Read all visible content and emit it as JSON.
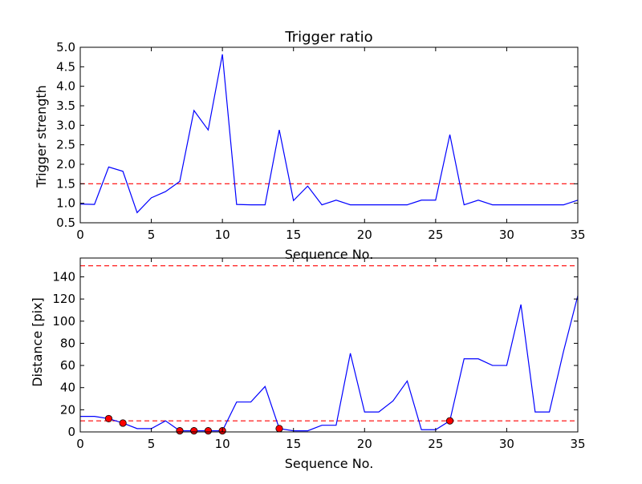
{
  "chart_data": [
    {
      "type": "line",
      "title": "Trigger ratio",
      "xlabel": "Sequence No.",
      "ylabel": "Trigger strength",
      "xlim": [
        0,
        35
      ],
      "ylim": [
        0.5,
        5.0
      ],
      "xticks": [
        "0",
        "5",
        "10",
        "15",
        "20",
        "25",
        "30",
        "35"
      ],
      "yticks": [
        "0.5",
        "1.0",
        "1.5",
        "2.0",
        "2.5",
        "3.0",
        "3.5",
        "4.0",
        "4.5",
        "5.0"
      ],
      "grid": false,
      "line_color": "#0000ff",
      "threshold": 1.5,
      "threshold_color": "#ff0000",
      "x": [
        0,
        1,
        2,
        3,
        4,
        5,
        6,
        7,
        8,
        9,
        10,
        11,
        12,
        13,
        14,
        15,
        16,
        17,
        18,
        19,
        20,
        21,
        22,
        23,
        24,
        25,
        26,
        27,
        28,
        29,
        30,
        31,
        32,
        33,
        34,
        35
      ],
      "values": [
        0.98,
        0.97,
        1.93,
        1.82,
        0.76,
        1.14,
        1.3,
        1.56,
        3.38,
        2.88,
        4.82,
        0.97,
        0.96,
        0.96,
        2.88,
        1.07,
        1.44,
        0.96,
        1.08,
        0.96,
        0.96,
        0.96,
        0.96,
        0.96,
        1.08,
        1.08,
        2.76,
        0.96,
        1.08,
        0.96,
        0.96,
        0.96,
        0.96,
        0.96,
        0.96,
        1.08
      ]
    },
    {
      "type": "line",
      "title": "",
      "xlabel": "Sequence No.",
      "ylabel": "Distance [pix]",
      "xlim": [
        0,
        35
      ],
      "ylim": [
        0,
        157
      ],
      "xticks": [
        "0",
        "5",
        "10",
        "15",
        "20",
        "25",
        "30",
        "35"
      ],
      "yticks": [
        "0",
        "20",
        "40",
        "60",
        "80",
        "100",
        "120",
        "140"
      ],
      "grid": false,
      "line_color": "#0000ff",
      "thresholds": [
        10,
        150
      ],
      "threshold_color": "#ff0000",
      "marker_color": "#ff0000",
      "x": [
        0,
        1,
        2,
        3,
        4,
        5,
        6,
        7,
        8,
        9,
        10,
        11,
        12,
        13,
        14,
        15,
        16,
        17,
        18,
        19,
        20,
        21,
        22,
        23,
        24,
        25,
        26,
        27,
        28,
        29,
        30,
        31,
        32,
        33,
        34,
        35
      ],
      "values": [
        14,
        14,
        12,
        8,
        3,
        3,
        10,
        1,
        1,
        1,
        1,
        27,
        27,
        41,
        3,
        1,
        1,
        6,
        6,
        71,
        18,
        18,
        28,
        46,
        2,
        2,
        10,
        66,
        66,
        60,
        60,
        115,
        18,
        18,
        73,
        123
      ],
      "highlighted_x": [
        2,
        3,
        7,
        8,
        9,
        10,
        14,
        26
      ]
    }
  ]
}
